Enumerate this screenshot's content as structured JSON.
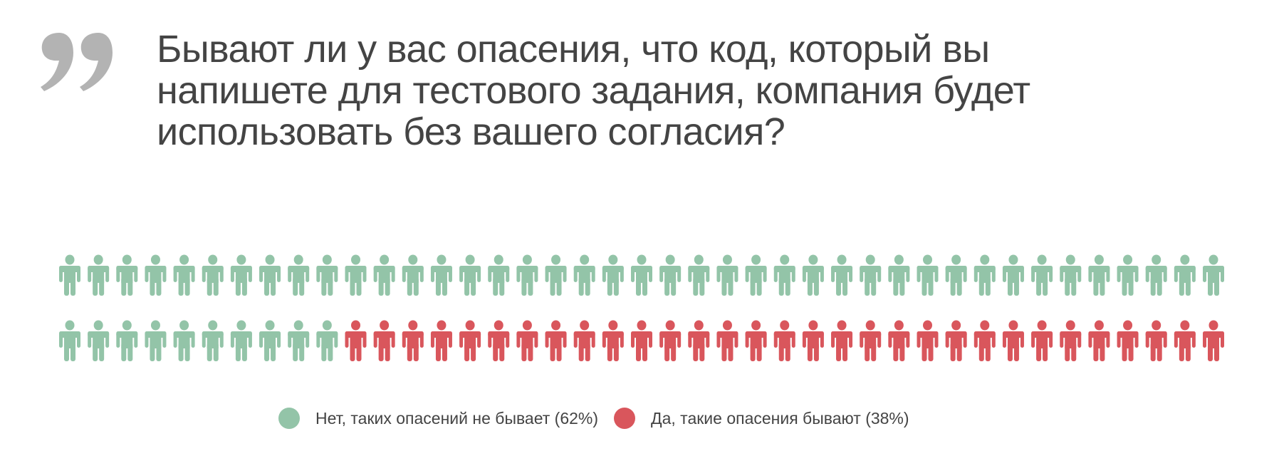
{
  "title_lines": [
    "Бывают ли у вас опасения, что код, который вы",
    "напишете для тестового задания, компания будет",
    "использовать без вашего согласия?"
  ],
  "chart_data": {
    "type": "pictogram",
    "icon": "person-icon",
    "icons_per_row": 41,
    "series": [
      {
        "name": "Нет, таких опасений не бывает (62%)",
        "percent": 62,
        "icon_count": 51,
        "color": "#93c4a8"
      },
      {
        "name": "Да, такие опасения бывают (38%)",
        "percent": 38,
        "icon_count": 31,
        "color": "#d9565c"
      }
    ],
    "legend_position": "bottom"
  },
  "colors": {
    "title": "#444444",
    "quote": "#b3b3b3"
  }
}
